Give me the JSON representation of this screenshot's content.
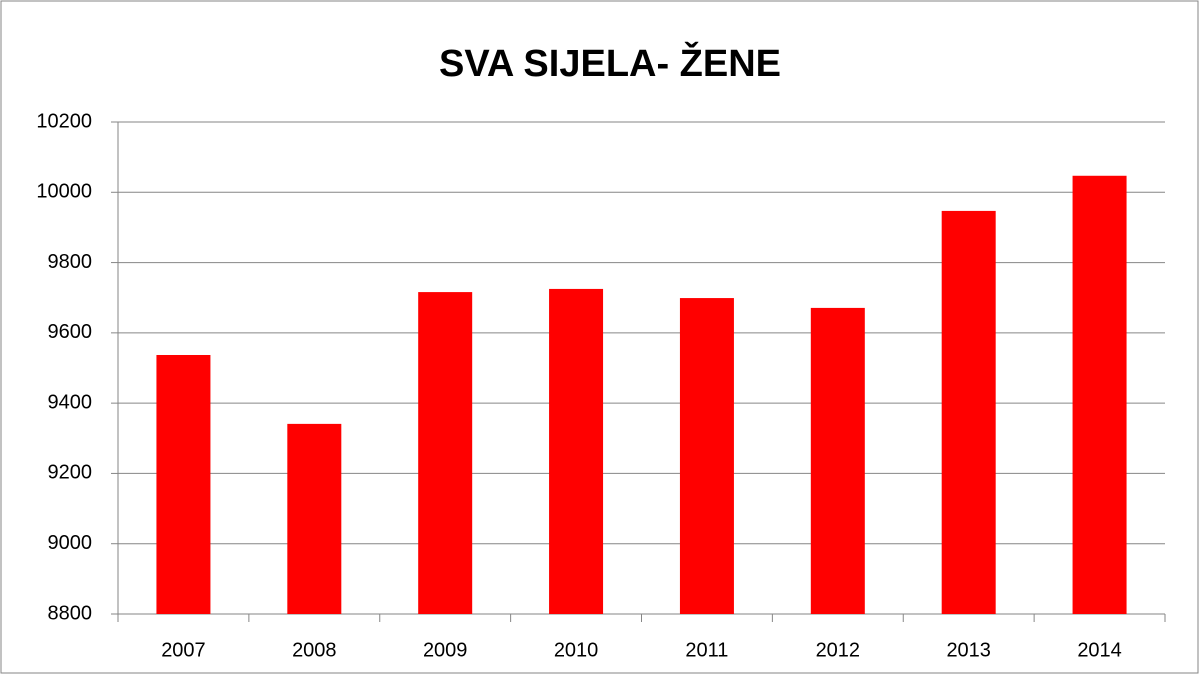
{
  "chart_data": {
    "type": "bar",
    "title": "SVA SIJELA- ŽENE",
    "categories": [
      "2007",
      "2008",
      "2009",
      "2010",
      "2011",
      "2012",
      "2013",
      "2014"
    ],
    "values": [
      9537,
      9341,
      9716,
      9725,
      9699,
      9671,
      9947,
      10047
    ],
    "color": "#ff0000",
    "ylim": [
      8800,
      10200
    ],
    "yticks": [
      8800,
      9000,
      9200,
      9400,
      9600,
      9800,
      10000,
      10200
    ],
    "grid": true
  }
}
